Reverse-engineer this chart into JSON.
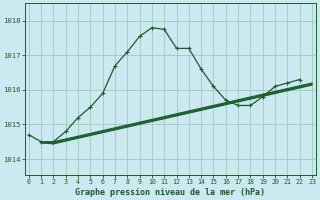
{
  "xlabel": "Graphe pression niveau de la mer (hPa)",
  "bg_color": "#cce8f0",
  "grid_color": "#99ccbb",
  "line_color": "#1a5c2a",
  "xlim": [
    -0.3,
    23.3
  ],
  "ylim": [
    1013.55,
    1018.5
  ],
  "yticks": [
    1014,
    1015,
    1016,
    1017,
    1018
  ],
  "xticks": [
    0,
    1,
    2,
    3,
    4,
    5,
    6,
    7,
    8,
    9,
    10,
    11,
    12,
    13,
    14,
    15,
    16,
    17,
    18,
    19,
    20,
    21,
    22,
    23
  ],
  "series_main": {
    "x": [
      0,
      1,
      2,
      3,
      4,
      5,
      6,
      7,
      8,
      9,
      10,
      11,
      12,
      13,
      14,
      15,
      16,
      17,
      18,
      19,
      20,
      21,
      22,
      23
    ],
    "y": [
      1014.7,
      1014.5,
      1014.5,
      1014.8,
      1015.2,
      1015.5,
      1015.9,
      1016.7,
      1017.1,
      1017.55,
      1017.8,
      1017.75,
      1017.2,
      1017.2,
      1016.6,
      1016.1,
      1015.7,
      1015.55,
      1015.55,
      1015.8,
      1016.1,
      1016.2,
      1016.3,
      null
    ]
  },
  "series_linear1": {
    "x": [
      2,
      3,
      4,
      23
    ],
    "y": [
      1014.5,
      1014.4,
      1014.4,
      1016.2
    ]
  },
  "series_linear2": {
    "x": [
      2,
      3,
      4,
      23
    ],
    "y": [
      1014.55,
      1014.45,
      1014.45,
      1016.15
    ]
  },
  "series_linear3": {
    "x": [
      2,
      3,
      4,
      23
    ],
    "y": [
      1014.6,
      1014.5,
      1014.5,
      1016.05
    ]
  },
  "series_linear4": {
    "x": [
      2,
      3,
      4,
      23
    ],
    "y": [
      1014.65,
      1014.55,
      1014.55,
      1015.95
    ]
  }
}
